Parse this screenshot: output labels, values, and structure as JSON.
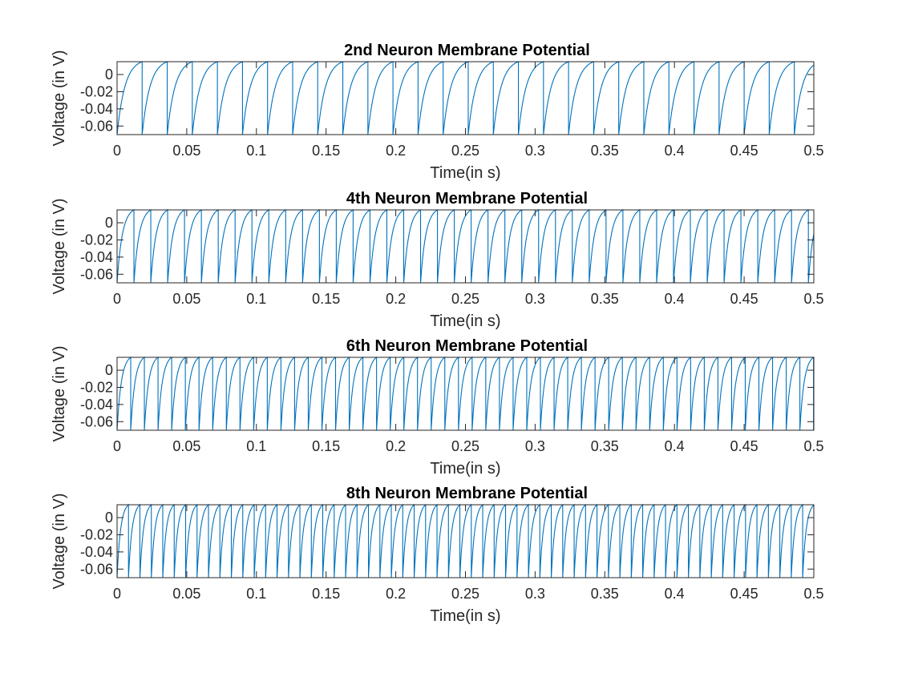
{
  "chart_data": [
    {
      "type": "line",
      "title": "2nd Neuron Membrane Potential",
      "xlabel": "Time(in s)",
      "ylabel": "Voltage (in V)",
      "xlim": [
        0,
        0.5
      ],
      "ylim": [
        -0.07,
        0.015
      ],
      "xticks": [
        "0",
        "0.05",
        "0.1",
        "0.15",
        "0.2",
        "0.25",
        "0.3",
        "0.35",
        "0.4",
        "0.45",
        "0.5"
      ],
      "yticks": [
        "0",
        "-0.02",
        "-0.04",
        "-0.06"
      ],
      "series": [
        {
          "v_reset": -0.07,
          "v_peak": 0.015,
          "spike_period": 0.018,
          "color": "#0072BD"
        }
      ]
    },
    {
      "type": "line",
      "title": "4th Neuron Membrane Potential",
      "xlabel": "Time(in s)",
      "ylabel": "Voltage (in V)",
      "xlim": [
        0,
        0.5
      ],
      "ylim": [
        -0.07,
        0.015
      ],
      "xticks": [
        "0",
        "0.05",
        "0.1",
        "0.15",
        "0.2",
        "0.25",
        "0.3",
        "0.35",
        "0.4",
        "0.45",
        "0.5"
      ],
      "yticks": [
        "0",
        "-0.02",
        "-0.04",
        "-0.06"
      ],
      "series": [
        {
          "v_reset": -0.07,
          "v_peak": 0.015,
          "spike_period": 0.0121,
          "color": "#0072BD"
        }
      ]
    },
    {
      "type": "line",
      "title": "6th Neuron Membrane Potential",
      "xlabel": "Time(in s)",
      "ylabel": "Voltage (in V)",
      "xlim": [
        0,
        0.5
      ],
      "ylim": [
        -0.07,
        0.015
      ],
      "xticks": [
        "0",
        "0.05",
        "0.1",
        "0.15",
        "0.2",
        "0.25",
        "0.3",
        "0.35",
        "0.4",
        "0.45",
        "0.5"
      ],
      "yticks": [
        "0",
        "-0.02",
        "-0.04",
        "-0.06"
      ],
      "series": [
        {
          "v_reset": -0.07,
          "v_peak": 0.015,
          "spike_period": 0.0098,
          "color": "#0072BD"
        }
      ]
    },
    {
      "type": "line",
      "title": "8th Neuron Membrane Potential",
      "xlabel": "Time(in s)",
      "ylabel": "Voltage (in V)",
      "xlim": [
        0,
        0.5
      ],
      "ylim": [
        -0.07,
        0.015
      ],
      "xticks": [
        "0",
        "0.05",
        "0.1",
        "0.15",
        "0.2",
        "0.25",
        "0.3",
        "0.35",
        "0.4",
        "0.45",
        "0.5"
      ],
      "yticks": [
        "0",
        "-0.02",
        "-0.04",
        "-0.06"
      ],
      "series": [
        {
          "v_reset": -0.07,
          "v_peak": 0.015,
          "spike_period": 0.0082,
          "color": "#0072BD"
        }
      ]
    }
  ]
}
